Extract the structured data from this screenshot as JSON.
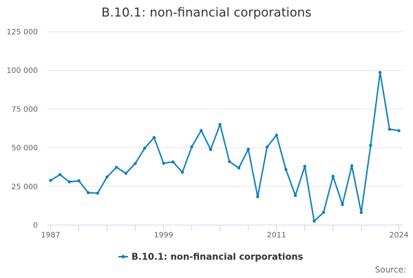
{
  "chart_data": {
    "type": "line",
    "title": "B.10.1: non-financial corporations",
    "xlabel": "",
    "ylabel": "",
    "x": [
      1987,
      1988,
      1989,
      1990,
      1991,
      1992,
      1993,
      1994,
      1995,
      1996,
      1997,
      1998,
      1999,
      2000,
      2001,
      2002,
      2003,
      2004,
      2005,
      2006,
      2007,
      2008,
      2009,
      2010,
      2011,
      2012,
      2013,
      2014,
      2015,
      2016,
      2017,
      2018,
      2019,
      2020,
      2021,
      2022,
      2023,
      2024
    ],
    "series": [
      {
        "name": "B.10.1: non-financial corporations",
        "color": "#0b7dbd",
        "values": [
          28800,
          32600,
          27900,
          28600,
          20900,
          20600,
          31100,
          37300,
          33400,
          39800,
          49700,
          56600,
          39900,
          40800,
          34100,
          50600,
          61100,
          48800,
          65000,
          41000,
          36900,
          49000,
          18300,
          50400,
          58100,
          35900,
          19100,
          38000,
          2500,
          8200,
          31500,
          13200,
          38300,
          8100,
          51500,
          98600,
          61900,
          61000
        ]
      }
    ],
    "xlim": [
      1986.6,
      2024.4
    ],
    "ylim": [
      0,
      125000
    ],
    "y_ticks": [
      0,
      25000,
      50000,
      75000,
      100000,
      125000
    ],
    "y_tick_labels": [
      "0",
      "25 000",
      "50 000",
      "75 000",
      "100 000",
      "125 000"
    ],
    "x_tick_labels": [
      {
        "year": 1987,
        "label": "1987"
      },
      {
        "year": 1999,
        "label": "1999"
      },
      {
        "year": 2011,
        "label": "2011"
      },
      {
        "year": 2024,
        "label": "2024"
      }
    ],
    "x_tick_marks": [
      1987,
      1990,
      1993,
      1996,
      1999,
      2002,
      2005,
      2008,
      2011,
      2014,
      2017,
      2020,
      2024
    ],
    "grid": true,
    "legend_position": "bottom-center"
  },
  "credits": "Source:"
}
